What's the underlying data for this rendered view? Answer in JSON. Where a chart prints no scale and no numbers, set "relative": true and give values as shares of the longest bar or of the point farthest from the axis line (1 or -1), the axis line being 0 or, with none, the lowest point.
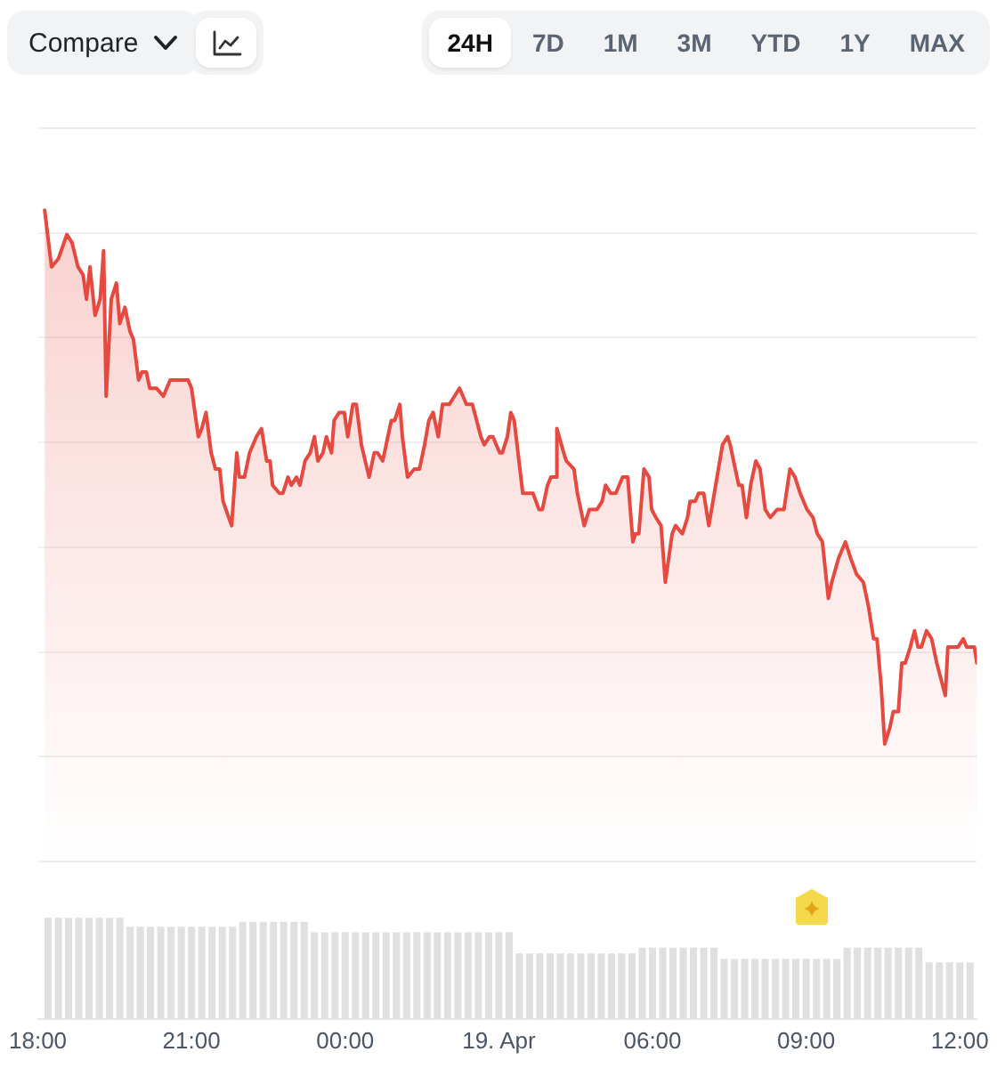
{
  "chart_data": {
    "type": "area",
    "relative": true,
    "grid": "y",
    "marker": "none",
    "annotations": [
      "Compare",
      "24H",
      "7D",
      "1M",
      "3M",
      "YTD",
      "1Y",
      "MAX"
    ],
    "xlim": [
      "--04-18T18:00",
      "--04-19T12:20"
    ],
    "xticks": [
      {
        "value": "--04-18T18:00",
        "label": "18:00"
      },
      {
        "value": "--04-18T21:00",
        "label": "21:00"
      },
      {
        "value": "--04-19T00:00",
        "label": "00:00"
      },
      {
        "value": "--04-19T03:00",
        "label": "19. Apr"
      },
      {
        "value": "--04-19T06:00",
        "label": "06:00"
      },
      {
        "value": "--04-19T09:00",
        "label": "09:00"
      },
      {
        "value": "--04-19T12:00",
        "label": "12:00"
      }
    ],
    "x": [
      "--04-18T18:08",
      "--04-18T18:16",
      "--04-18T18:24",
      "--04-18T18:34",
      "--04-18T18:40",
      "--04-18T18:47",
      "--04-18T18:53",
      "--04-18T18:57",
      "--04-18T19:01",
      "--04-18T19:07",
      "--04-18T19:13",
      "--04-18T19:17",
      "--04-18T19:20",
      "--04-18T19:26",
      "--04-18T19:32",
      "--04-18T19:36",
      "--04-18T19:42",
      "--04-18T19:48",
      "--04-18T19:52",
      "--04-18T19:58",
      "--04-18T20:02",
      "--04-18T20:07",
      "--04-18T20:11",
      "--04-18T20:19",
      "--04-18T20:27",
      "--04-18T20:35",
      "--04-18T20:41",
      "--04-18T20:56",
      "--04-18T21:00",
      "--04-18T21:08",
      "--04-18T21:12",
      "--04-18T21:17",
      "--04-18T21:23",
      "--04-18T21:28",
      "--04-18T21:33",
      "--04-18T21:37",
      "--04-18T21:47",
      "--04-18T21:53",
      "--04-18T21:56",
      "--04-18T22:02",
      "--04-18T22:08",
      "--04-18T22:16",
      "--04-18T22:22",
      "--04-18T22:28",
      "--04-18T22:32",
      "--04-18T22:35",
      "--04-18T22:43",
      "--04-18T22:47",
      "--04-18T22:53",
      "--04-18T22:57",
      "--04-18T23:03",
      "--04-18T23:07",
      "--04-18T23:13",
      "--04-18T23:19",
      "--04-18T23:24",
      "--04-18T23:28",
      "--04-18T23:34",
      "--04-18T23:38",
      "--04-18T23:44",
      "--04-18T23:47",
      "--04-18T23:53",
      "--04-18T23:59",
      "--04-19T00:03",
      "--04-19T00:09",
      "--04-19T00:13",
      "--04-19T00:19",
      "--04-19T00:28",
      "--04-19T00:34",
      "--04-19T00:38",
      "--04-19T00:44",
      "--04-19T00:54",
      "--04-19T00:58",
      "--04-19T01:04",
      "--04-19T01:07",
      "--04-19T01:13",
      "--04-19T01:21",
      "--04-19T01:27",
      "--04-19T01:33",
      "--04-19T01:38",
      "--04-19T01:43",
      "--04-19T01:49",
      "--04-19T01:54",
      "--04-19T02:02",
      "--04-19T02:08",
      "--04-19T02:14",
      "--04-19T02:22",
      "--04-19T02:29",
      "--04-19T02:39",
      "--04-19T02:43",
      "--04-19T02:49",
      "--04-19T02:53",
      "--04-19T03:01",
      "--04-19T03:04",
      "--04-19T03:10",
      "--04-19T03:14",
      "--04-19T03:18",
      "--04-19T03:28",
      "--04-19T03:34",
      "--04-19T03:40",
      "--04-19T03:47",
      "--04-19T03:51",
      "--04-19T03:57",
      "--04-19T04:01",
      "--04-19T04:07",
      "--04-19T04:08",
      "--04-19T04:16",
      "--04-19T04:19",
      "--04-19T04:28",
      "--04-19T04:32",
      "--04-19T04:40",
      "--04-19T04:46",
      "--04-19T04:52",
      "--04-19T04:55",
      "--04-19T05:01",
      "--04-19T05:05",
      "--04-19T05:11",
      "--04-19T05:17",
      "--04-19T05:25",
      "--04-19T05:31",
      "--04-19T05:37",
      "--04-19T05:40",
      "--04-19T05:44",
      "--04-19T05:50",
      "--04-19T05:56",
      "--04-19T05:59",
      "--04-19T06:04",
      "--04-19T06:10",
      "--04-19T06:15",
      "--04-19T06:23",
      "--04-19T06:27",
      "--04-19T06:35",
      "--04-19T06:41",
      "--04-19T06:44",
      "--04-19T06:50",
      "--04-19T06:54",
      "--04-19T07:00",
      "--04-19T07:06",
      "--04-19T07:14",
      "--04-19T07:22",
      "--04-19T07:28",
      "--04-19T07:31",
      "--04-19T07:41",
      "--04-19T07:45",
      "--04-19T07:50",
      "--04-19T07:55",
      "--04-19T08:01",
      "--04-19T08:06",
      "--04-19T08:12",
      "--04-19T08:18",
      "--04-19T08:26",
      "--04-19T08:34",
      "--04-19T08:41",
      "--04-19T08:47",
      "--04-19T08:53",
      "--04-19T09:01",
      "--04-19T09:08",
      "--04-19T09:13",
      "--04-19T09:19",
      "--04-19T09:26",
      "--04-19T09:30",
      "--04-19T09:38",
      "--04-19T09:46",
      "--04-19T09:52",
      "--04-19T09:59",
      "--04-19T10:07",
      "--04-19T10:13",
      "--04-19T10:19",
      "--04-19T10:23",
      "--04-19T10:28",
      "--04-19T10:32",
      "--04-19T10:38",
      "--04-19T10:42",
      "--04-19T10:48",
      "--04-19T10:52",
      "--04-19T10:56",
      "--04-19T11:02",
      "--04-19T11:07",
      "--04-19T11:11",
      "--04-19T11:15",
      "--04-19T11:21",
      "--04-19T11:27",
      "--04-19T11:33",
      "--04-19T11:43",
      "--04-19T11:46",
      "--04-19T11:54",
      "--04-19T11:58",
      "--04-19T12:04",
      "--04-19T12:08",
      "--04-19T12:14",
      "--04-19T12:17",
      "--04-19T12:20"
    ],
    "series": [
      {
        "color": "#e5493f",
        "values": [
          1.0,
          0.93,
          0.94,
          0.97,
          0.96,
          0.93,
          0.92,
          0.89,
          0.93,
          0.87,
          0.89,
          0.95,
          0.77,
          0.89,
          0.91,
          0.86,
          0.88,
          0.85,
          0.84,
          0.79,
          0.8,
          0.8,
          0.78,
          0.78,
          0.77,
          0.79,
          0.79,
          0.79,
          0.78,
          0.72,
          0.73,
          0.75,
          0.7,
          0.68,
          0.68,
          0.64,
          0.61,
          0.7,
          0.67,
          0.67,
          0.7,
          0.72,
          0.73,
          0.69,
          0.69,
          0.66,
          0.65,
          0.65,
          0.67,
          0.66,
          0.67,
          0.66,
          0.69,
          0.7,
          0.72,
          0.69,
          0.7,
          0.72,
          0.7,
          0.74,
          0.75,
          0.75,
          0.72,
          0.76,
          0.76,
          0.71,
          0.67,
          0.7,
          0.7,
          0.69,
          0.74,
          0.74,
          0.76,
          0.72,
          0.67,
          0.68,
          0.68,
          0.71,
          0.74,
          0.75,
          0.72,
          0.76,
          0.76,
          0.77,
          0.78,
          0.76,
          0.76,
          0.72,
          0.71,
          0.72,
          0.72,
          0.7,
          0.7,
          0.72,
          0.75,
          0.74,
          0.65,
          0.65,
          0.65,
          0.63,
          0.63,
          0.66,
          0.67,
          0.67,
          0.73,
          0.7,
          0.69,
          0.68,
          0.65,
          0.61,
          0.63,
          0.63,
          0.63,
          0.64,
          0.66,
          0.65,
          0.65,
          0.67,
          0.67,
          0.59,
          0.6,
          0.6,
          0.68,
          0.67,
          0.63,
          0.62,
          0.61,
          0.54,
          0.6,
          0.61,
          0.6,
          0.62,
          0.64,
          0.64,
          0.65,
          0.65,
          0.61,
          0.66,
          0.71,
          0.72,
          0.71,
          0.66,
          0.66,
          0.62,
          0.66,
          0.69,
          0.68,
          0.63,
          0.62,
          0.63,
          0.63,
          0.68,
          0.67,
          0.65,
          0.63,
          0.62,
          0.6,
          0.59,
          0.52,
          0.54,
          0.57,
          0.59,
          0.57,
          0.55,
          0.54,
          0.51,
          0.47,
          0.47,
          0.41,
          0.34,
          0.36,
          0.38,
          0.38,
          0.44,
          0.44,
          0.46,
          0.48,
          0.46,
          0.46,
          0.48,
          0.47,
          0.44,
          0.4,
          0.46,
          0.46,
          0.46,
          0.47,
          0.46,
          0.46,
          0.46,
          0.44
        ]
      },
      {
        "type": "bar",
        "color": "#e0e0e0",
        "x": [
          "--04-18T18:12",
          "--04-18T18:24",
          "--04-18T18:36",
          "--04-18T18:48",
          "--04-18T19:00",
          "--04-18T19:12",
          "--04-18T19:24",
          "--04-18T19:36",
          "--04-18T19:48",
          "--04-18T20:00",
          "--04-18T20:12",
          "--04-18T20:24",
          "--04-18T20:36",
          "--04-18T20:48",
          "--04-18T21:00",
          "--04-18T21:12",
          "--04-18T21:24",
          "--04-18T21:36",
          "--04-18T21:48",
          "--04-18T22:00",
          "--04-18T22:12",
          "--04-18T22:24",
          "--04-18T22:36",
          "--04-18T22:48",
          "--04-18T23:00",
          "--04-18T23:12",
          "--04-18T23:24",
          "--04-18T23:36",
          "--04-18T23:48",
          "--04-19T00:00",
          "--04-19T00:12",
          "--04-19T00:24",
          "--04-19T00:36",
          "--04-19T00:48",
          "--04-19T01:00",
          "--04-19T01:12",
          "--04-19T01:24",
          "--04-19T01:36",
          "--04-19T01:48",
          "--04-19T02:00",
          "--04-19T02:12",
          "--04-19T02:24",
          "--04-19T02:36",
          "--04-19T02:48",
          "--04-19T03:00",
          "--04-19T03:12",
          "--04-19T03:24",
          "--04-19T03:36",
          "--04-19T03:48",
          "--04-19T04:00",
          "--04-19T04:12",
          "--04-19T04:24",
          "--04-19T04:36",
          "--04-19T04:48",
          "--04-19T05:00",
          "--04-19T05:12",
          "--04-19T05:24",
          "--04-19T05:36",
          "--04-19T05:48",
          "--04-19T06:00",
          "--04-19T06:12",
          "--04-19T06:24",
          "--04-19T06:36",
          "--04-19T06:48",
          "--04-19T07:00",
          "--04-19T07:12",
          "--04-19T07:24",
          "--04-19T07:36",
          "--04-19T07:48",
          "--04-19T08:00",
          "--04-19T08:12",
          "--04-19T08:24",
          "--04-19T08:36",
          "--04-19T08:48",
          "--04-19T09:00",
          "--04-19T09:12",
          "--04-19T09:24",
          "--04-19T09:36",
          "--04-19T09:48",
          "--04-19T10:00",
          "--04-19T10:12",
          "--04-19T10:24",
          "--04-19T10:36",
          "--04-19T10:48",
          "--04-19T11:00",
          "--04-19T11:12",
          "--04-19T11:24",
          "--04-19T11:36",
          "--04-19T11:48",
          "--04-19T12:00",
          "--04-19T12:12"
        ],
        "values": [
          0.125,
          0.125,
          0.125,
          0.125,
          0.125,
          0.125,
          0.125,
          0.125,
          0.114,
          0.114,
          0.114,
          0.114,
          0.114,
          0.114,
          0.114,
          0.114,
          0.114,
          0.114,
          0.114,
          0.12,
          0.12,
          0.12,
          0.12,
          0.12,
          0.12,
          0.12,
          0.107,
          0.107,
          0.107,
          0.107,
          0.107,
          0.107,
          0.107,
          0.107,
          0.107,
          0.107,
          0.107,
          0.107,
          0.107,
          0.107,
          0.107,
          0.107,
          0.107,
          0.107,
          0.107,
          0.107,
          0.081,
          0.081,
          0.081,
          0.081,
          0.081,
          0.081,
          0.081,
          0.081,
          0.081,
          0.081,
          0.081,
          0.081,
          0.088,
          0.088,
          0.088,
          0.088,
          0.088,
          0.088,
          0.088,
          0.088,
          0.074,
          0.074,
          0.074,
          0.074,
          0.074,
          0.074,
          0.074,
          0.074,
          0.074,
          0.074,
          0.074,
          0.074,
          0.088,
          0.088,
          0.088,
          0.088,
          0.088,
          0.088,
          0.088,
          0.088,
          0.07,
          0.07,
          0.07,
          0.07,
          0.07
        ]
      }
    ]
  }
}
